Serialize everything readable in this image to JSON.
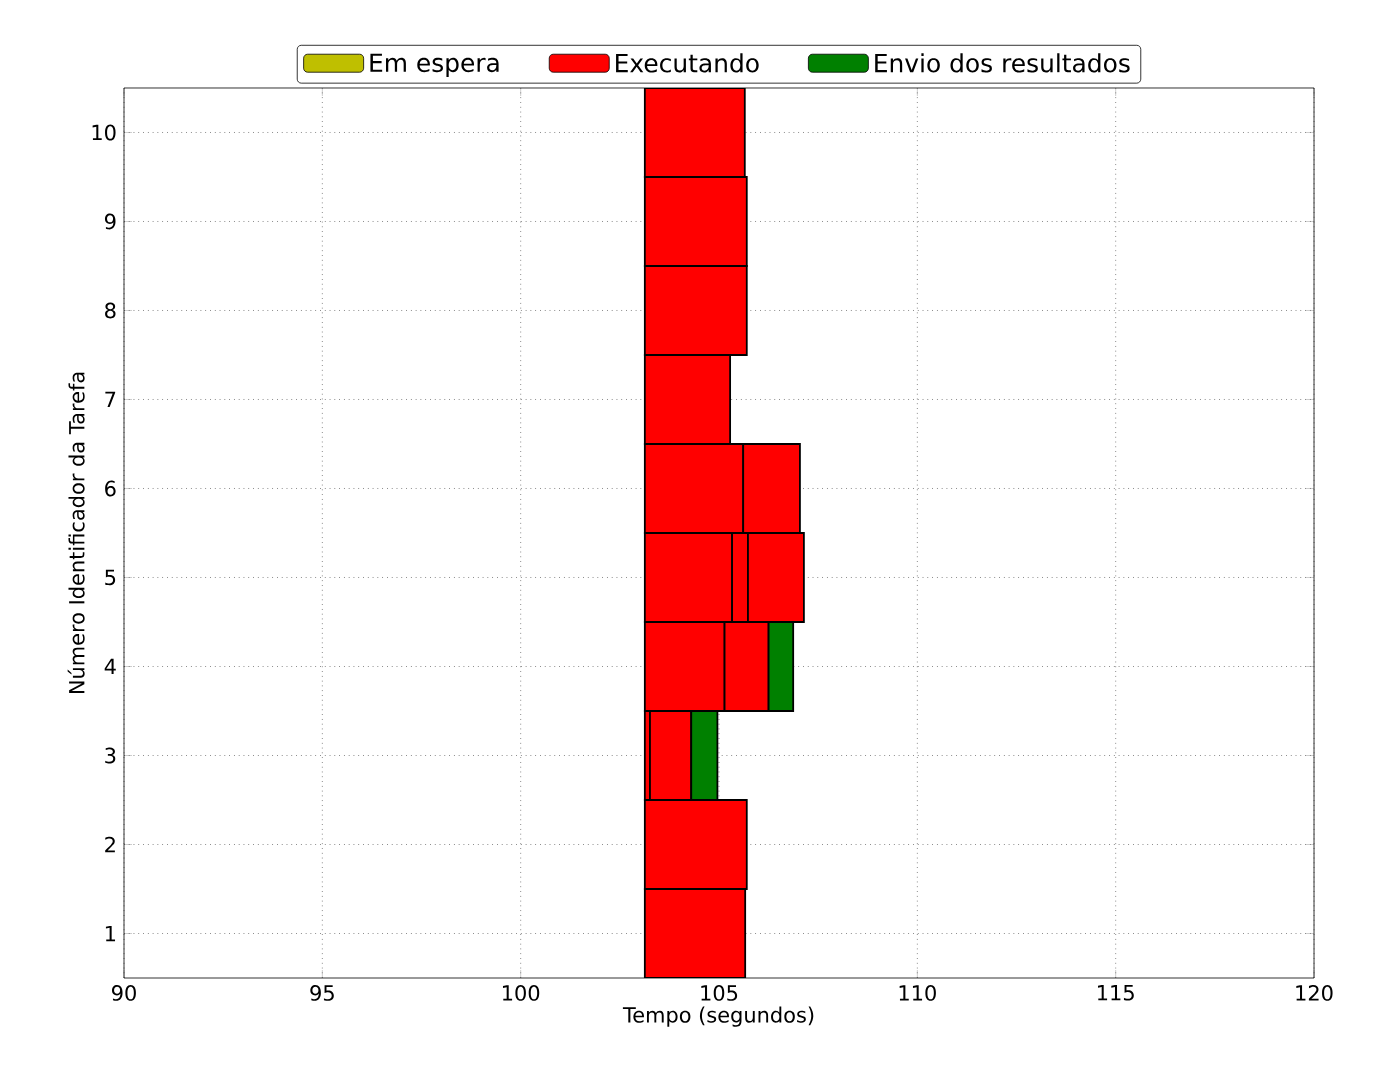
{
  "chart_data": {
    "type": "bar",
    "orientation": "horizontal",
    "xlabel": "Tempo (segundos)",
    "ylabel": "Número Identificador da Tarefa",
    "categories": [
      "10",
      "9",
      "8",
      "7",
      "6",
      "5",
      "4",
      "3",
      "2",
      "1"
    ],
    "series": [
      {
        "name": "Em espera",
        "color": "#bfbf00",
        "values": [
          null,
          null,
          null,
          null,
          null,
          null,
          null,
          null,
          null,
          null
        ]
      },
      {
        "name": "Executando",
        "color": "#ff0000",
        "base": [
          103.13,
          103.13,
          103.13,
          103.13,
          103.13,
          103.13,
          103.13,
          103.13,
          103.13,
          103.13
        ],
        "values": [
          2.52,
          2.57,
          2.57,
          2.15,
          2.48,
          2.2,
          2.01,
          0.13,
          2.57,
          2.53
        ]
      },
      {
        "color": "#ff0000",
        "base": [
          null,
          null,
          null,
          null,
          105.61,
          105.33,
          105.14,
          103.26,
          null,
          null
        ],
        "values": [
          null,
          null,
          null,
          null,
          1.43,
          0.4,
          1.11,
          1.04,
          null,
          null
        ]
      },
      {
        "color": "#ff0000",
        "base": [
          null,
          null,
          null,
          null,
          null,
          105.73,
          null,
          null,
          null,
          null
        ],
        "values": [
          null,
          null,
          null,
          null,
          null,
          1.41,
          null,
          null,
          null,
          null
        ]
      },
      {
        "name": "Envio dos resultados",
        "color": "#008000",
        "base": [
          null,
          null,
          null,
          null,
          null,
          null,
          106.25,
          104.3,
          null,
          null
        ],
        "values": [
          null,
          null,
          null,
          null,
          null,
          null,
          0.62,
          0.66,
          null,
          null
        ]
      }
    ],
    "xlim": [
      90,
      120
    ],
    "xticks": [
      90,
      95,
      100,
      105,
      110,
      115,
      120
    ],
    "grid": true,
    "legend": "top"
  }
}
